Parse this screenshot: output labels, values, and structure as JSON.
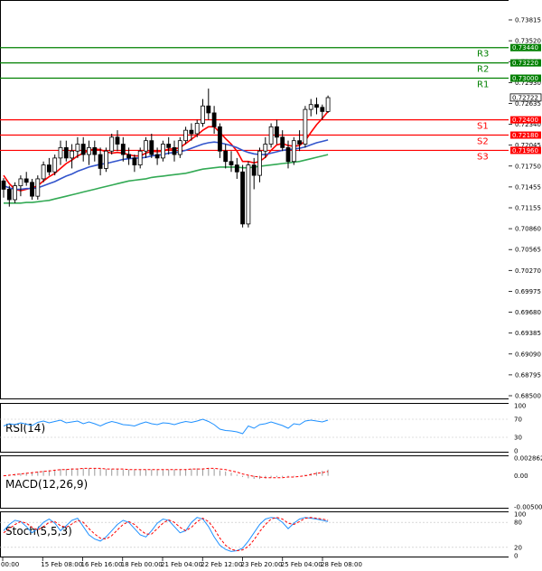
{
  "chart_data": {
    "type": "candlestick",
    "title": "",
    "price_axis": {
      "range": [
        0.684,
        0.741
      ],
      "ticks": [
        "0.73815",
        "0.73520",
        "0.73225",
        "0.72930",
        "0.72635",
        "0.72340",
        "0.72045",
        "0.71750",
        "0.71455",
        "0.71155",
        "0.70860",
        "0.70565",
        "0.70270",
        "0.69975",
        "0.69680",
        "0.69385",
        "0.69090",
        "0.68795",
        "0.68500"
      ]
    },
    "current_price": "0.72722",
    "levels": [
      {
        "name": "R3",
        "value": 0.7344,
        "label": "0.73440",
        "color": "#008000"
      },
      {
        "name": "R2",
        "value": 0.7322,
        "label": "0.73220",
        "color": "#008000"
      },
      {
        "name": "R1",
        "value": 0.73,
        "label": "0.73000",
        "color": "#008000"
      },
      {
        "name": "S1",
        "value": 0.724,
        "label": "0.72400",
        "color": "#ff0000"
      },
      {
        "name": "S2",
        "value": 0.7218,
        "label": "0.72180",
        "color": "#ff0000"
      },
      {
        "name": "S3",
        "value": 0.7196,
        "label": "0.71960",
        "color": "#ff0000"
      }
    ],
    "x_labels": [
      "00:00",
      "15 Feb 08:00",
      "16 Feb 16:00",
      "18 Feb 00:00",
      "21 Feb 04:00",
      "22 Feb 12:00",
      "23 Feb 20:00",
      "25 Feb 04:00",
      "28 Feb 08:00"
    ],
    "candles": [
      [
        0.7152,
        0.7156,
        0.7128,
        0.714
      ],
      [
        0.714,
        0.7145,
        0.7115,
        0.7125
      ],
      [
        0.7125,
        0.715,
        0.712,
        0.7145
      ],
      [
        0.7145,
        0.716,
        0.713,
        0.7155
      ],
      [
        0.7155,
        0.7165,
        0.7145,
        0.715
      ],
      [
        0.715,
        0.7155,
        0.7125,
        0.713
      ],
      [
        0.713,
        0.716,
        0.7125,
        0.7155
      ],
      [
        0.7155,
        0.718,
        0.715,
        0.7175
      ],
      [
        0.7175,
        0.7185,
        0.716,
        0.7165
      ],
      [
        0.7165,
        0.719,
        0.716,
        0.7185
      ],
      [
        0.7185,
        0.721,
        0.7175,
        0.72
      ],
      [
        0.72,
        0.721,
        0.718,
        0.7185
      ],
      [
        0.7185,
        0.7205,
        0.717,
        0.7195
      ],
      [
        0.7195,
        0.7215,
        0.7185,
        0.7205
      ],
      [
        0.7205,
        0.7215,
        0.718,
        0.719
      ],
      [
        0.719,
        0.721,
        0.7175,
        0.72
      ],
      [
        0.72,
        0.721,
        0.718,
        0.719
      ],
      [
        0.719,
        0.72,
        0.716,
        0.717
      ],
      [
        0.717,
        0.72,
        0.7165,
        0.7195
      ],
      [
        0.7195,
        0.722,
        0.719,
        0.7215
      ],
      [
        0.7215,
        0.7225,
        0.7195,
        0.7205
      ],
      [
        0.7205,
        0.7215,
        0.718,
        0.719
      ],
      [
        0.719,
        0.72,
        0.7175,
        0.7185
      ],
      [
        0.7185,
        0.719,
        0.7165,
        0.7175
      ],
      [
        0.7175,
        0.72,
        0.717,
        0.7195
      ],
      [
        0.7195,
        0.7215,
        0.7185,
        0.721
      ],
      [
        0.721,
        0.722,
        0.7185,
        0.719
      ],
      [
        0.719,
        0.72,
        0.7175,
        0.7185
      ],
      [
        0.7185,
        0.721,
        0.718,
        0.7205
      ],
      [
        0.7205,
        0.7215,
        0.719,
        0.72
      ],
      [
        0.72,
        0.721,
        0.718,
        0.719
      ],
      [
        0.719,
        0.7215,
        0.7185,
        0.721
      ],
      [
        0.721,
        0.723,
        0.7205,
        0.7225
      ],
      [
        0.7225,
        0.7235,
        0.721,
        0.722
      ],
      [
        0.722,
        0.724,
        0.7215,
        0.7235
      ],
      [
        0.7235,
        0.727,
        0.723,
        0.726
      ],
      [
        0.726,
        0.7285,
        0.724,
        0.725
      ],
      [
        0.725,
        0.726,
        0.722,
        0.723
      ],
      [
        0.723,
        0.7235,
        0.7185,
        0.7195
      ],
      [
        0.7195,
        0.7205,
        0.717,
        0.718
      ],
      [
        0.718,
        0.7195,
        0.7165,
        0.7175
      ],
      [
        0.7175,
        0.7185,
        0.7155,
        0.7165
      ],
      [
        0.7165,
        0.7175,
        0.7085,
        0.709
      ],
      [
        0.709,
        0.718,
        0.7085,
        0.7175
      ],
      [
        0.7175,
        0.7185,
        0.714,
        0.716
      ],
      [
        0.716,
        0.72,
        0.715,
        0.7195
      ],
      [
        0.7195,
        0.7215,
        0.7185,
        0.7205
      ],
      [
        0.7205,
        0.7235,
        0.72,
        0.723
      ],
      [
        0.723,
        0.724,
        0.7205,
        0.7215
      ],
      [
        0.7215,
        0.7225,
        0.7195,
        0.72
      ],
      [
        0.72,
        0.721,
        0.717,
        0.718
      ],
      [
        0.718,
        0.7215,
        0.7175,
        0.721
      ],
      [
        0.721,
        0.7225,
        0.7195,
        0.7205
      ],
      [
        0.7205,
        0.726,
        0.72,
        0.7255
      ],
      [
        0.7255,
        0.727,
        0.7245,
        0.7262
      ],
      [
        0.7262,
        0.7272,
        0.7248,
        0.7258
      ],
      [
        0.7258,
        0.7262,
        0.724,
        0.7252
      ],
      [
        0.7252,
        0.7275,
        0.725,
        0.7272
      ]
    ],
    "moving_averages": [
      {
        "name": "MA fast",
        "color": "#ff0000",
        "values": [
          0.716,
          0.7148,
          0.714,
          0.7138,
          0.714,
          0.7142,
          0.7145,
          0.7152,
          0.7158,
          0.7163,
          0.717,
          0.7177,
          0.7182,
          0.7188,
          0.7192,
          0.7196,
          0.7198,
          0.7197,
          0.7194,
          0.7192,
          0.7193,
          0.7192,
          0.719,
          0.7188,
          0.7188,
          0.7192,
          0.7195,
          0.7194,
          0.7195,
          0.7198,
          0.7198,
          0.72,
          0.7206,
          0.7212,
          0.7218,
          0.7225,
          0.723,
          0.723,
          0.7222,
          0.7213,
          0.7205,
          0.7195,
          0.718,
          0.718,
          0.7178,
          0.718,
          0.7186,
          0.7196,
          0.7204,
          0.7206,
          0.7203,
          0.7202,
          0.7203,
          0.721,
          0.7222,
          0.7233,
          0.7242,
          0.7252
        ]
      },
      {
        "name": "MA medium",
        "color": "#3355cc",
        "values": [
          0.7145,
          0.7142,
          0.714,
          0.714,
          0.7141,
          0.7141,
          0.7142,
          0.7145,
          0.7148,
          0.7151,
          0.7155,
          0.7159,
          0.7162,
          0.7166,
          0.7169,
          0.7172,
          0.7174,
          0.7176,
          0.7177,
          0.7179,
          0.7181,
          0.7183,
          0.7184,
          0.7185,
          0.7185,
          0.7186,
          0.7188,
          0.7189,
          0.719,
          0.7192,
          0.7193,
          0.7194,
          0.7196,
          0.7199,
          0.7202,
          0.7205,
          0.7207,
          0.7208,
          0.7207,
          0.7205,
          0.7203,
          0.72,
          0.7196,
          0.7193,
          0.7191,
          0.719,
          0.719,
          0.7192,
          0.7194,
          0.7196,
          0.7197,
          0.7198,
          0.7199,
          0.7201,
          0.7204,
          0.7207,
          0.7209,
          0.7211
        ]
      },
      {
        "name": "MA slow",
        "color": "#33aa55",
        "values": [
          0.712,
          0.712,
          0.712,
          0.712,
          0.7121,
          0.7121,
          0.7122,
          0.7123,
          0.7124,
          0.7126,
          0.7128,
          0.713,
          0.7132,
          0.7134,
          0.7136,
          0.7138,
          0.714,
          0.7142,
          0.7144,
          0.7146,
          0.7148,
          0.715,
          0.7152,
          0.7153,
          0.7154,
          0.7155,
          0.7157,
          0.7158,
          0.7159,
          0.716,
          0.7161,
          0.7162,
          0.7163,
          0.7165,
          0.7167,
          0.7169,
          0.717,
          0.7171,
          0.7172,
          0.7172,
          0.7172,
          0.7172,
          0.7171,
          0.7171,
          0.7172,
          0.7173,
          0.7174,
          0.7175,
          0.7176,
          0.7177,
          0.7178,
          0.7179,
          0.718,
          0.7182,
          0.7184,
          0.7186,
          0.7188,
          0.719
        ]
      }
    ],
    "indicators": {
      "rsi": {
        "label": "RSI(14)",
        "ticks": [
          "100",
          "70",
          "30",
          "0"
        ],
        "range": [
          0,
          100
        ],
        "color": "#1e90ff",
        "values": [
          55,
          60,
          58,
          62,
          59,
          56,
          63,
          66,
          62,
          65,
          68,
          62,
          64,
          66,
          60,
          64,
          60,
          55,
          61,
          65,
          62,
          58,
          57,
          55,
          60,
          64,
          60,
          58,
          62,
          61,
          58,
          62,
          65,
          63,
          66,
          70,
          65,
          58,
          48,
          45,
          44,
          42,
          38,
          55,
          50,
          58,
          60,
          64,
          60,
          56,
          50,
          60,
          58,
          66,
          68,
          66,
          64,
          68
        ]
      },
      "macd": {
        "label": "MACD(12,26,9)",
        "ticks": [
          "0.002862",
          "0.00",
          "-0.005006"
        ],
        "range": [
          -0.005006,
          0.002862
        ],
        "histogram_color": "#999999",
        "signal_color": "#ff0000",
        "histogram": [
          0.0001,
          0.0002,
          0.0003,
          0.0004,
          0.0005,
          0.0006,
          0.0007,
          0.0008,
          0.0009,
          0.001,
          0.0011,
          0.0011,
          0.0012,
          0.0012,
          0.0012,
          0.0012,
          0.0012,
          0.0011,
          0.0011,
          0.0011,
          0.0011,
          0.001,
          0.001,
          0.001,
          0.001,
          0.001,
          0.001,
          0.001,
          0.001,
          0.001,
          0.001,
          0.001,
          0.0011,
          0.0011,
          0.0012,
          0.0012,
          0.0012,
          0.0011,
          0.0009,
          0.0007,
          0.0005,
          0.0002,
          -0.0002,
          -0.0004,
          -0.0005,
          -0.0005,
          -0.0004,
          -0.0003,
          -0.0002,
          -0.0002,
          -0.0002,
          -0.0001,
          0.0,
          0.0002,
          0.0004,
          0.0006,
          0.0008,
          0.001
        ],
        "signal": [
          0.0,
          0.0001,
          0.0002,
          0.0003,
          0.0004,
          0.0005,
          0.0006,
          0.0007,
          0.0008,
          0.0009,
          0.001,
          0.001,
          0.0011,
          0.0011,
          0.0012,
          0.0012,
          0.0012,
          0.0012,
          0.0011,
          0.0011,
          0.0011,
          0.0011,
          0.001,
          0.001,
          0.001,
          0.001,
          0.001,
          0.001,
          0.001,
          0.001,
          0.001,
          0.001,
          0.001,
          0.0011,
          0.0011,
          0.0011,
          0.0012,
          0.0012,
          0.0011,
          0.001,
          0.0008,
          0.0006,
          0.0003,
          0.0001,
          -0.0001,
          -0.0002,
          -0.0003,
          -0.0003,
          -0.0003,
          -0.0003,
          -0.0002,
          -0.0002,
          -0.0001,
          0.0,
          0.0002,
          0.0004,
          0.0005,
          0.0007
        ]
      },
      "stoch": {
        "label": "Stoch(5,5,3)",
        "ticks": [
          "100",
          "80",
          "20",
          "0"
        ],
        "range": [
          0,
          100
        ],
        "main_color": "#1e90ff",
        "signal_color": "#ff0000",
        "main": [
          60,
          75,
          85,
          82,
          70,
          55,
          65,
          80,
          88,
          78,
          60,
          72,
          85,
          90,
          70,
          50,
          40,
          35,
          45,
          60,
          75,
          85,
          80,
          65,
          50,
          45,
          60,
          78,
          88,
          85,
          70,
          55,
          60,
          80,
          92,
          88,
          70,
          45,
          25,
          15,
          10,
          12,
          18,
          35,
          55,
          75,
          88,
          92,
          90,
          80,
          65,
          78,
          88,
          92,
          90,
          88,
          85,
          82
        ],
        "signal": [
          55,
          65,
          75,
          82,
          78,
          68,
          62,
          70,
          80,
          82,
          72,
          68,
          76,
          85,
          80,
          65,
          52,
          42,
          40,
          48,
          62,
          75,
          82,
          75,
          62,
          52,
          52,
          65,
          78,
          86,
          80,
          68,
          60,
          68,
          82,
          90,
          82,
          65,
          42,
          25,
          15,
          12,
          14,
          22,
          38,
          58,
          75,
          88,
          92,
          88,
          78,
          75,
          82,
          90,
          92,
          90,
          88,
          85
        ]
      }
    }
  }
}
